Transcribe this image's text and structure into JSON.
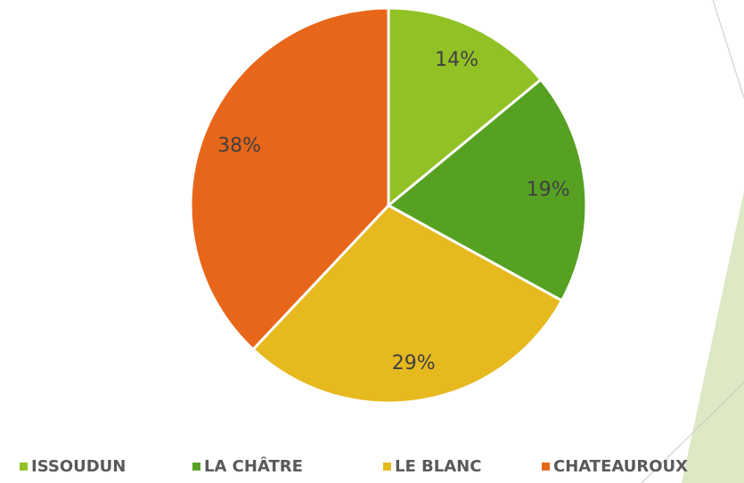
{
  "chart_data": {
    "type": "pie",
    "categories": [
      "ISSOUDUN",
      "LA CHÂTRE",
      "LE BLANC",
      "CHATEAUROUX"
    ],
    "values": [
      14,
      19,
      29,
      38
    ],
    "value_labels": [
      "14%",
      "19%",
      "29%",
      "38%"
    ],
    "colors": [
      "#92c125",
      "#56a122",
      "#e6b91f",
      "#e8661a"
    ],
    "legend": "bottom"
  }
}
